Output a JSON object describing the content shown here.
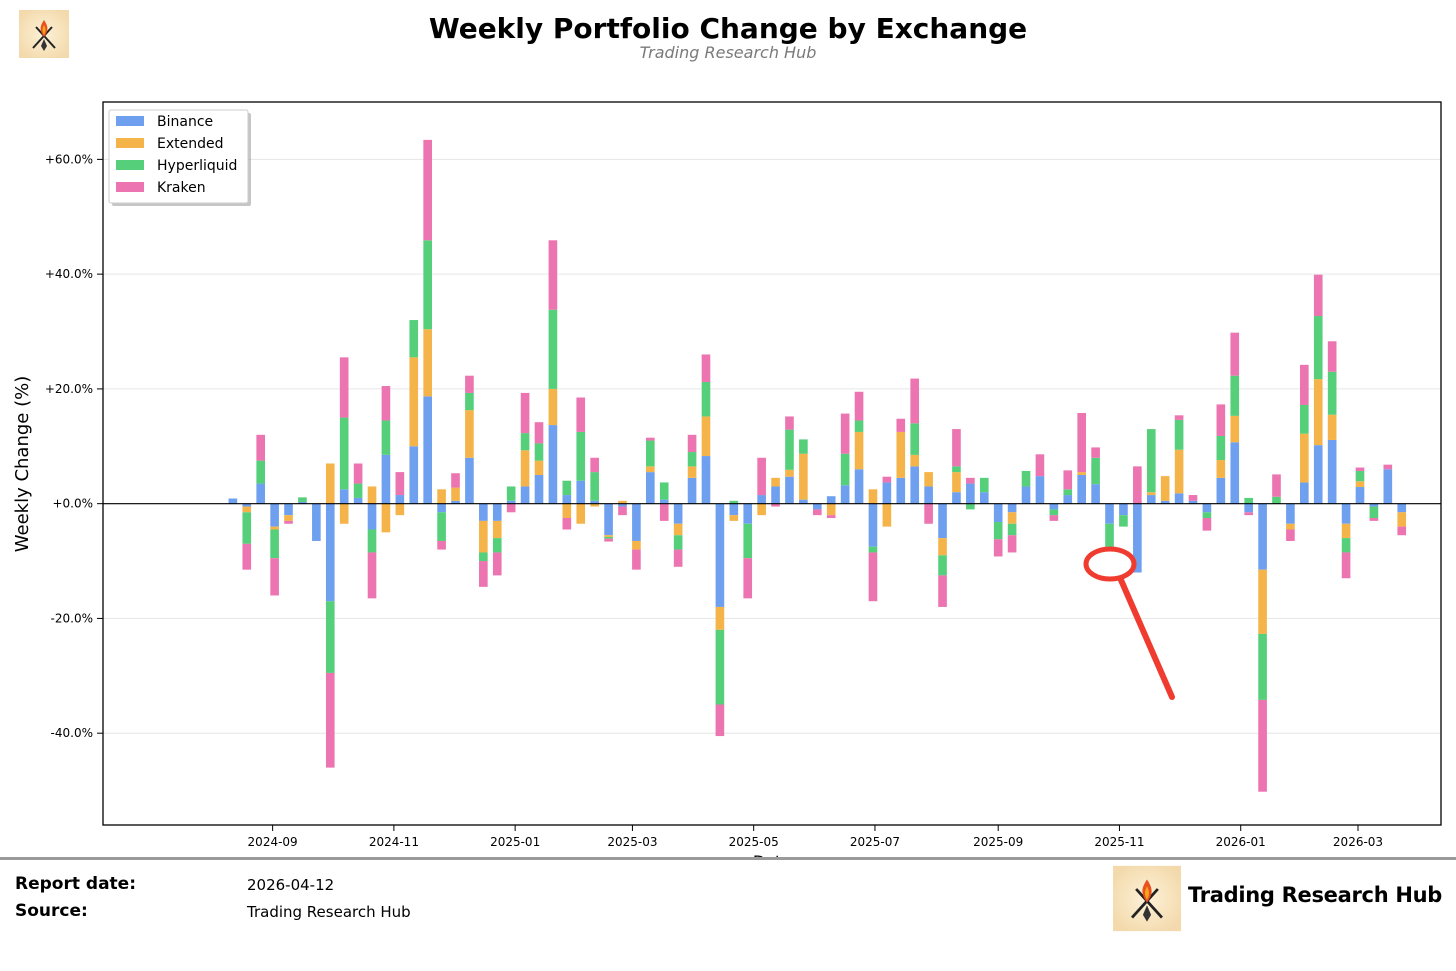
{
  "chart_data": {
    "type": "bar",
    "stacked": true,
    "title": "Weekly Portfolio Change by Exchange",
    "subtitle": "Trading Research Hub",
    "xlabel": "Date",
    "ylabel": "Weekly Change (%)",
    "ylim": [
      -56,
      70
    ],
    "yticks": [
      60,
      40,
      20,
      0,
      -20,
      -40
    ],
    "ytick_labels": [
      "+60.0%",
      "+40.0%",
      "+20.0%",
      "+0.0%",
      "-20.0%",
      "-40.0%"
    ],
    "xticks": [
      "2024-09",
      "2024-11",
      "2025-01",
      "2025-03",
      "2025-05",
      "2025-07",
      "2025-09",
      "2025-11",
      "2026-01",
      "2026-03"
    ],
    "legend_position": "top-left",
    "legend": [
      "Binance",
      "Extended",
      "Hyperliquid",
      "Kraken"
    ],
    "colors": {
      "Binance": "#6ea0ef",
      "Extended": "#f5b449",
      "Hyperliquid": "#56cf7b",
      "Kraken": "#ec74b0"
    },
    "weeks_start": "2024-08-12",
    "series": [
      {
        "name": "Binance",
        "values": [
          0.9,
          -0.5,
          3.5,
          -4,
          -2,
          0.3,
          -6.5,
          -17,
          2.5,
          1,
          -4.5,
          8.5,
          1.5,
          10,
          18.7,
          -1.5,
          0.5,
          8,
          -3,
          -3,
          0.5,
          3,
          5,
          13.7,
          1.5,
          4,
          0.5,
          -5.5,
          -0.5,
          -6.5,
          5.5,
          0.7,
          -3.5,
          4.5,
          8.3,
          -18,
          -2,
          -3.5,
          1.5,
          3,
          4.7,
          0.7,
          -1,
          1.3,
          3.2,
          6,
          -7.5,
          3.7,
          4.5,
          6.5,
          3,
          -6,
          2,
          3.5,
          2,
          -3.2,
          -1.5,
          3,
          4.8,
          -1,
          1.5,
          5,
          3.4,
          -3.5,
          -2,
          -12,
          1.5,
          0.5,
          1.8,
          0.5,
          -1.5,
          4.5,
          10.7,
          -1.5,
          -11.5,
          0,
          -3.5,
          3.7,
          10.2,
          11.1,
          -3.5,
          2.9,
          -0.5,
          6,
          -1.5
        ]
      },
      {
        "name": "Extended",
        "values": [
          0,
          -1,
          0,
          -0.5,
          -1,
          0,
          0,
          7,
          -3.5,
          0,
          3,
          -5,
          -2,
          15.5,
          11.7,
          2.5,
          2.3,
          8.3,
          -5.5,
          -3,
          0,
          6.3,
          2.5,
          6.3,
          -2.5,
          -3.5,
          -0.5,
          -0.3,
          0.5,
          -1.5,
          1,
          0,
          -2,
          2,
          6.9,
          -4,
          -1,
          0,
          -2,
          1.5,
          1.2,
          8,
          0,
          -2,
          0,
          6.5,
          2.5,
          -4,
          8,
          2,
          2.5,
          -3,
          3.5,
          0,
          0,
          0,
          -2,
          0,
          0,
          0,
          0,
          0.5,
          0,
          0,
          0,
          0,
          0.5,
          4.3,
          7.6,
          0,
          0,
          3.1,
          4.6,
          0,
          -11.2,
          0,
          -1,
          8.5,
          11.5,
          4.4,
          -2.5,
          1,
          0,
          0,
          -2.5
        ]
      },
      {
        "name": "Hyperliquid",
        "values": [
          0,
          -5.5,
          4,
          -5,
          0,
          0.8,
          0,
          -12.5,
          12.5,
          2.5,
          -4,
          6,
          0,
          6.5,
          15.5,
          -5,
          0,
          3,
          -1.5,
          -2.5,
          2.5,
          3,
          3,
          13.8,
          2.5,
          8.5,
          5,
          -0.3,
          0,
          0,
          4.5,
          3,
          -2.5,
          2.5,
          6,
          -13,
          0.5,
          -6,
          0,
          0,
          7,
          2.5,
          0,
          0,
          5.5,
          2,
          -1,
          0,
          0,
          5.5,
          0,
          -3.5,
          1,
          -1,
          2.5,
          -3,
          -2,
          2.7,
          0,
          -1,
          1,
          0,
          4.6,
          -4,
          -2,
          0,
          11,
          0,
          5.2,
          0,
          -1,
          4.2,
          7,
          1,
          -11.5,
          1.2,
          0,
          5,
          11,
          7.5,
          -2.5,
          1.8,
          -2,
          0,
          0
        ]
      },
      {
        "name": "Kraken",
        "values": [
          0,
          -4.5,
          4.5,
          -6.5,
          -0.5,
          0,
          0,
          -16.5,
          10.5,
          3.5,
          -8,
          6,
          4,
          0,
          17.5,
          -1.5,
          2.5,
          3,
          -4.5,
          -4,
          -1.5,
          7,
          3.7,
          12.1,
          -2,
          6,
          2.5,
          -0.5,
          -1.5,
          -3.5,
          0.5,
          -3,
          -3,
          3,
          4.8,
          -5.5,
          0,
          -7,
          6.5,
          -0.5,
          2.3,
          0,
          -1,
          -0.5,
          7,
          5,
          -8.5,
          1,
          2.3,
          7.8,
          -3.5,
          -5.5,
          6.5,
          1,
          0,
          -3,
          -3,
          0,
          3.8,
          -1,
          3.3,
          10.3,
          1.8,
          0,
          0,
          6.5,
          0,
          0,
          0.8,
          1,
          -2.2,
          5.5,
          7.5,
          -0.5,
          -16,
          3.9,
          -2,
          7,
          7.2,
          5.3,
          -4.5,
          0.6,
          -0.5,
          0.8,
          -1.5
        ]
      }
    ]
  },
  "annotation": {
    "shape": "circle-with-arrow",
    "color": "#f03c30"
  },
  "footer": {
    "report_date_label": "Report date:",
    "report_date_value": "2026-04-12",
    "source_label": "Source:",
    "source_value": "Trading Research Hub",
    "brand": "Trading Research Hub"
  }
}
